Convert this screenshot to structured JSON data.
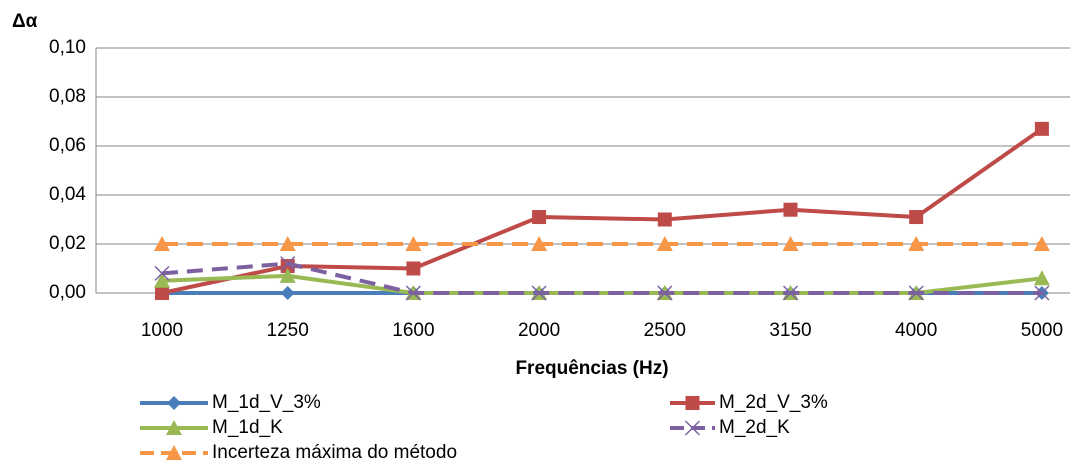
{
  "chart_data": {
    "type": "line",
    "y_label": "Δα",
    "x_label": "Frequências (Hz)",
    "categories": [
      "1000",
      "1250",
      "1600",
      "2000",
      "2500",
      "3150",
      "4000",
      "5000"
    ],
    "ylim": [
      0,
      0.1
    ],
    "yticks": [
      {
        "value": 0,
        "label": "0,00"
      },
      {
        "value": 0.02,
        "label": "0,02"
      },
      {
        "value": 0.04,
        "label": "0,04"
      },
      {
        "value": 0.06,
        "label": "0,06"
      },
      {
        "value": 0.08,
        "label": "0,08"
      },
      {
        "value": 0.1,
        "label": "0,10"
      }
    ],
    "grid": true,
    "legend": "bottom",
    "series": [
      {
        "name": "M_1d_V_3%",
        "color": "#4a7ebb",
        "marker": "diamond",
        "dashed": false,
        "values": [
          0,
          0,
          0,
          0,
          0,
          0,
          0,
          0
        ]
      },
      {
        "name": "M_2d_V_3%",
        "color": "#be4b48",
        "marker": "square",
        "dashed": false,
        "values": [
          0,
          0.011,
          0.01,
          0.031,
          0.03,
          0.034,
          0.031,
          0.067
        ]
      },
      {
        "name": "M_1d_K",
        "color": "#98b954",
        "marker": "triangle",
        "dashed": false,
        "values": [
          0.005,
          0.007,
          0,
          0,
          0,
          0,
          0,
          0.006
        ]
      },
      {
        "name": "M_2d_K",
        "color": "#7d60a0",
        "marker": "x",
        "dashed": true,
        "values": [
          0.008,
          0.012,
          0,
          0,
          0,
          0,
          0,
          0
        ]
      },
      {
        "name": "Incerteza máxima do método",
        "color": "#f79646",
        "marker": "triangle",
        "dashed": true,
        "values": [
          0.02,
          0.02,
          0.02,
          0.02,
          0.02,
          0.02,
          0.02,
          0.02
        ]
      }
    ]
  }
}
